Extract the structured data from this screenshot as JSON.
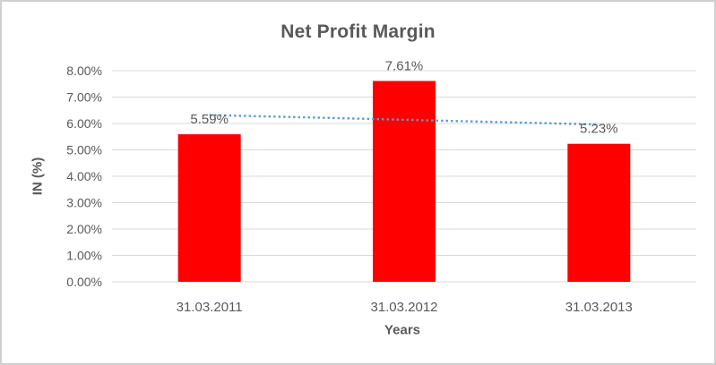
{
  "chart_data": {
    "type": "bar",
    "title": "Net Profit Margin",
    "xlabel": "Years",
    "ylabel": "IN (%)",
    "categories": [
      "31.03.2011",
      "31.03.2012",
      "31.03.2013"
    ],
    "values": [
      5.59,
      7.61,
      5.23
    ],
    "data_labels": [
      "5.59%",
      "7.61%",
      "5.23%"
    ],
    "ylim": [
      0,
      8
    ],
    "ytick_step": 1,
    "ytick_labels": [
      "0.00%",
      "1.00%",
      "2.00%",
      "3.00%",
      "4.00%",
      "5.00%",
      "6.00%",
      "7.00%",
      "8.00%"
    ],
    "grid": true,
    "legend": "none",
    "bar_color": "#FF0000",
    "trendline": {
      "type": "linear",
      "style": "dotted",
      "color": "#5B9BD5",
      "start_value": 6.32,
      "end_value": 5.96
    },
    "text_color": "#595959",
    "gridline_color": "#D9D9D9"
  }
}
